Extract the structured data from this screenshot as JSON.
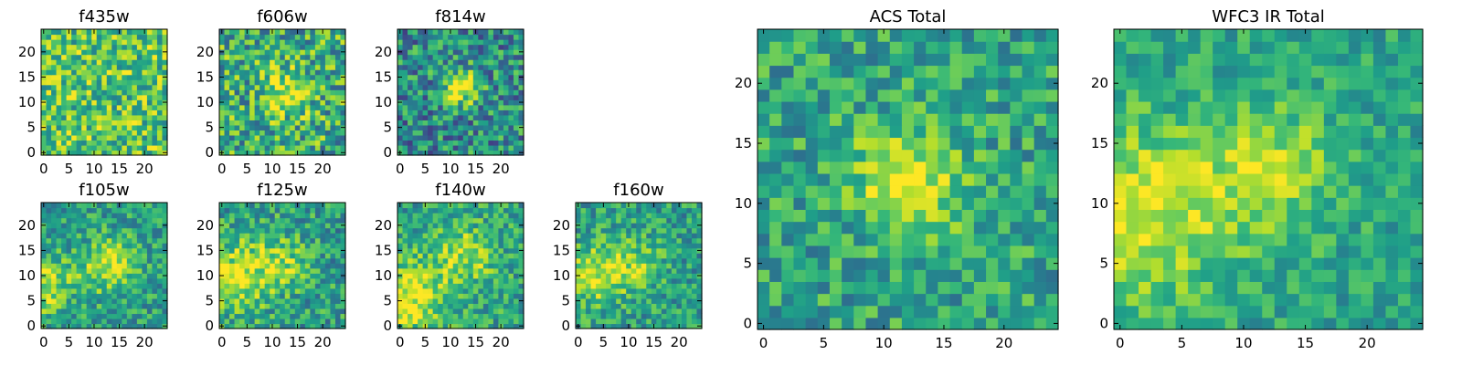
{
  "chart_data": [
    {
      "id": "f435w",
      "type": "heatmap",
      "title": "f435w",
      "colormap": "viridis",
      "grid": false,
      "xlim": [
        -0.5,
        24.5
      ],
      "ylim": [
        -0.5,
        24.5
      ],
      "x_ticks": [
        "0",
        "5",
        "10",
        "15",
        "20"
      ],
      "y_ticks": [
        "0",
        "5",
        "10",
        "15",
        "20"
      ],
      "pattern": {
        "noise": 0.28,
        "base": 0.72,
        "blobs": []
      }
    },
    {
      "id": "f606w",
      "type": "heatmap",
      "title": "f606w",
      "colormap": "viridis",
      "grid": false,
      "xlim": [
        -0.5,
        24.5
      ],
      "ylim": [
        -0.5,
        24.5
      ],
      "x_ticks": [
        "0",
        "5",
        "10",
        "15",
        "20"
      ],
      "y_ticks": [
        "0",
        "5",
        "10",
        "15",
        "20"
      ],
      "pattern": {
        "noise": 0.32,
        "base": 0.62,
        "blobs": [
          {
            "cx": 13,
            "cy": 12,
            "r": 3,
            "a": 0.35
          }
        ]
      }
    },
    {
      "id": "f814w",
      "type": "heatmap",
      "title": "f814w",
      "colormap": "viridis",
      "grid": false,
      "xlim": [
        -0.5,
        24.5
      ],
      "ylim": [
        -0.5,
        24.5
      ],
      "x_ticks": [
        "0",
        "5",
        "10",
        "15",
        "20"
      ],
      "y_ticks": [
        "0",
        "5",
        "10",
        "15",
        "20"
      ],
      "pattern": {
        "noise": 0.3,
        "base": 0.48,
        "blobs": [
          {
            "cx": 12,
            "cy": 13,
            "r": 2.5,
            "a": 0.55
          }
        ]
      }
    },
    {
      "id": "f105w",
      "type": "heatmap",
      "title": "f105w",
      "colormap": "viridis",
      "grid": false,
      "xlim": [
        -0.5,
        24.5
      ],
      "ylim": [
        -0.5,
        24.5
      ],
      "x_ticks": [
        "0",
        "5",
        "10",
        "15",
        "20"
      ],
      "y_ticks": [
        "0",
        "5",
        "10",
        "15",
        "20"
      ],
      "pattern": {
        "noise": 0.22,
        "base": 0.55,
        "blobs": [
          {
            "cx": 13,
            "cy": 12,
            "r": 4,
            "a": 0.35
          },
          {
            "cx": 0,
            "cy": 8,
            "r": 4,
            "a": 0.35
          }
        ]
      }
    },
    {
      "id": "f125w",
      "type": "heatmap",
      "title": "f125w",
      "colormap": "viridis",
      "grid": false,
      "xlim": [
        -0.5,
        24.5
      ],
      "ylim": [
        -0.5,
        24.5
      ],
      "x_ticks": [
        "0",
        "5",
        "10",
        "15",
        "20"
      ],
      "y_ticks": [
        "0",
        "5",
        "10",
        "15",
        "20"
      ],
      "pattern": {
        "noise": 0.24,
        "base": 0.55,
        "blobs": [
          {
            "cx": 3,
            "cy": 10,
            "r": 5,
            "a": 0.35
          },
          {
            "cx": 12,
            "cy": 13,
            "r": 4,
            "a": 0.25
          }
        ]
      }
    },
    {
      "id": "f140w",
      "type": "heatmap",
      "title": "f140w",
      "colormap": "viridis",
      "grid": false,
      "xlim": [
        -0.5,
        24.5
      ],
      "ylim": [
        -0.5,
        24.5
      ],
      "x_ticks": [
        "0",
        "5",
        "10",
        "15",
        "20"
      ],
      "y_ticks": [
        "0",
        "5",
        "10",
        "15",
        "20"
      ],
      "pattern": {
        "noise": 0.22,
        "base": 0.58,
        "blobs": [
          {
            "cx": 2,
            "cy": 6,
            "r": 5,
            "a": 0.4
          },
          {
            "cx": 13,
            "cy": 14,
            "r": 4,
            "a": 0.3
          }
        ]
      }
    },
    {
      "id": "f160w",
      "type": "heatmap",
      "title": "f160w",
      "colormap": "viridis",
      "grid": false,
      "xlim": [
        -0.5,
        24.5
      ],
      "ylim": [
        -0.5,
        24.5
      ],
      "x_ticks": [
        "0",
        "5",
        "10",
        "15",
        "20"
      ],
      "y_ticks": [
        "0",
        "5",
        "10",
        "15",
        "20"
      ],
      "pattern": {
        "noise": 0.22,
        "base": 0.55,
        "blobs": [
          {
            "cx": 3,
            "cy": 10,
            "r": 4,
            "a": 0.35
          },
          {
            "cx": 11,
            "cy": 12,
            "r": 4,
            "a": 0.25
          }
        ]
      }
    },
    {
      "id": "acs-total",
      "type": "heatmap",
      "title": "ACS Total",
      "colormap": "viridis",
      "grid": false,
      "xlim": [
        -0.5,
        24.5
      ],
      "ylim": [
        -0.5,
        24.5
      ],
      "x_ticks": [
        "0",
        "5",
        "10",
        "15",
        "20"
      ],
      "y_ticks": [
        "0",
        "5",
        "10",
        "15",
        "20"
      ],
      "pattern": {
        "noise": 0.22,
        "base": 0.58,
        "blobs": [
          {
            "cx": 12,
            "cy": 12,
            "r": 3,
            "a": 0.45
          }
        ]
      }
    },
    {
      "id": "wfc3-ir-total",
      "type": "heatmap",
      "title": "WFC3 IR Total",
      "colormap": "viridis",
      "grid": false,
      "xlim": [
        -0.5,
        24.5
      ],
      "ylim": [
        -0.5,
        24.5
      ],
      "x_ticks": [
        "0",
        "5",
        "10",
        "15",
        "20"
      ],
      "y_ticks": [
        "0",
        "5",
        "10",
        "15",
        "20"
      ],
      "pattern": {
        "noise": 0.16,
        "base": 0.58,
        "blobs": [
          {
            "cx": 1,
            "cy": 9,
            "r": 5,
            "a": 0.4
          },
          {
            "cx": 12,
            "cy": 13,
            "r": 4,
            "a": 0.3
          }
        ]
      }
    }
  ]
}
